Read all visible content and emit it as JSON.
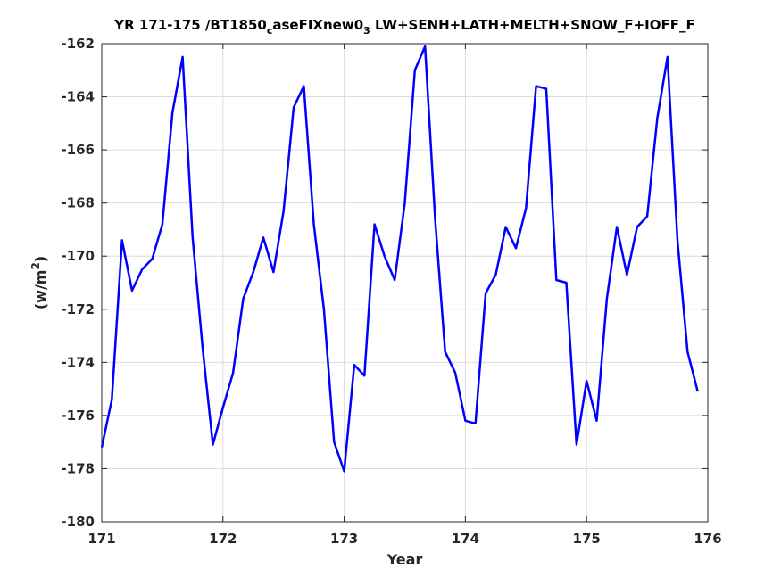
{
  "chart_data": {
    "type": "line",
    "title_parts": [
      {
        "text": "YR 171-175 /BT1850",
        "kind": "normal"
      },
      {
        "text": "c",
        "kind": "sub"
      },
      {
        "text": "aseFIXnew0",
        "kind": "normal"
      },
      {
        "text": "3",
        "kind": "sub"
      },
      {
        "text": " LW+SENH+LATH+MELTH+SNOW_F+IOFF_F",
        "kind": "normal"
      }
    ],
    "xlabel": "Year",
    "ylabel_parts": [
      {
        "text": "(w/m",
        "kind": "normal"
      },
      {
        "text": "2",
        "kind": "sup"
      },
      {
        "text": ")",
        "kind": "normal"
      }
    ],
    "xlim": [
      171,
      176
    ],
    "ylim": [
      -180,
      -162
    ],
    "xticks": [
      171,
      172,
      173,
      174,
      175,
      176
    ],
    "yticks": [
      -180,
      -178,
      -176,
      -174,
      -172,
      -170,
      -168,
      -166,
      -164,
      -162
    ],
    "grid": true,
    "series": [
      {
        "color": "#0000ff",
        "x": [
          171.0,
          171.083,
          171.167,
          171.25,
          171.333,
          171.417,
          171.5,
          171.583,
          171.667,
          171.75,
          171.833,
          171.917,
          172.0,
          172.083,
          172.167,
          172.25,
          172.333,
          172.417,
          172.5,
          172.583,
          172.667,
          172.75,
          172.833,
          172.917,
          173.0,
          173.083,
          173.167,
          173.25,
          173.333,
          173.417,
          173.5,
          173.583,
          173.667,
          173.75,
          173.833,
          173.917,
          174.0,
          174.083,
          174.167,
          174.25,
          174.333,
          174.417,
          174.5,
          174.583,
          174.667,
          174.75,
          174.833,
          174.917,
          175.0,
          175.083,
          175.167,
          175.25,
          175.333,
          175.417,
          175.5,
          175.583,
          175.667,
          175.75,
          175.833,
          175.917
        ],
        "y": [
          -177.2,
          -175.4,
          -169.4,
          -171.3,
          -170.5,
          -170.1,
          -168.8,
          -164.6,
          -162.5,
          -169.3,
          -173.5,
          -177.1,
          -175.7,
          -174.4,
          -171.6,
          -170.6,
          -169.3,
          -170.6,
          -168.3,
          -164.4,
          -163.6,
          -168.8,
          -172.0,
          -177.0,
          -178.1,
          -174.1,
          -174.5,
          -168.8,
          -170.0,
          -170.9,
          -168.0,
          -163.0,
          -162.1,
          -168.6,
          -173.6,
          -174.4,
          -176.2,
          -176.3,
          -171.4,
          -170.7,
          -168.9,
          -169.7,
          -168.2,
          -163.6,
          -163.7,
          -170.9,
          -171.0,
          -177.1,
          -174.7,
          -176.2,
          -171.6,
          -168.9,
          -170.7,
          -168.9,
          -168.5,
          -164.8,
          -162.5,
          -169.4,
          -173.6,
          -175.1
        ]
      }
    ]
  }
}
